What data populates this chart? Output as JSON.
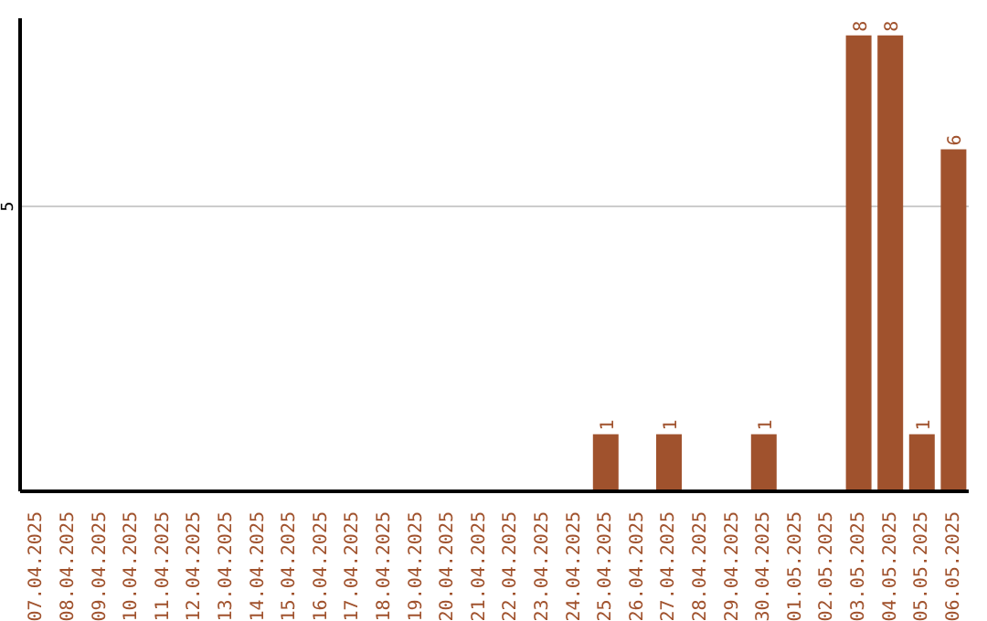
{
  "chart_data": {
    "type": "bar",
    "categories": [
      "07.04.2025",
      "08.04.2025",
      "09.04.2025",
      "10.04.2025",
      "11.04.2025",
      "12.04.2025",
      "13.04.2025",
      "14.04.2025",
      "15.04.2025",
      "16.04.2025",
      "17.04.2025",
      "18.04.2025",
      "19.04.2025",
      "20.04.2025",
      "21.04.2025",
      "22.04.2025",
      "23.04.2025",
      "24.04.2025",
      "25.04.2025",
      "26.04.2025",
      "27.04.2025",
      "28.04.2025",
      "29.04.2025",
      "30.04.2025",
      "01.05.2025",
      "02.05.2025",
      "03.05.2025",
      "04.05.2025",
      "05.05.2025",
      "06.05.2025"
    ],
    "values": [
      null,
      null,
      null,
      null,
      null,
      null,
      null,
      null,
      null,
      null,
      null,
      null,
      null,
      null,
      null,
      null,
      null,
      null,
      1,
      null,
      1,
      null,
      null,
      1,
      null,
      null,
      8,
      8,
      1,
      6
    ],
    "data_labels": true,
    "color": "#a0522d",
    "ylim": [
      0,
      8.3
    ],
    "yticks": [
      5
    ],
    "grid": "y"
  }
}
